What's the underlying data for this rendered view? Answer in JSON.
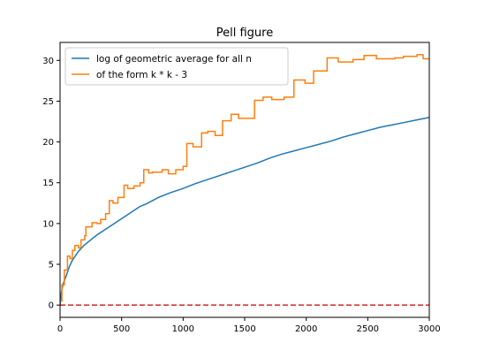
{
  "chart_data": {
    "type": "line",
    "title": "Pell figure",
    "xlabel": "",
    "ylabel": "",
    "xlim": [
      0,
      3000
    ],
    "ylim": [
      -1.5,
      32.2
    ],
    "x_ticks": [
      0,
      500,
      1000,
      1500,
      2000,
      2500,
      3000
    ],
    "y_ticks": [
      0,
      5,
      10,
      15,
      20,
      25,
      30
    ],
    "grid": false,
    "legend": "top-left",
    "series": [
      {
        "name": "log of geometric average for all n",
        "color": "#1f77b4",
        "style": "solid",
        "points": [
          [
            0,
            0
          ],
          [
            10,
            1.5
          ],
          [
            25,
            2.6
          ],
          [
            50,
            3.6
          ],
          [
            75,
            4.7
          ],
          [
            100,
            5.5
          ],
          [
            150,
            6.6
          ],
          [
            200,
            7.4
          ],
          [
            250,
            8.0
          ],
          [
            300,
            8.6
          ],
          [
            350,
            9.1
          ],
          [
            400,
            9.6
          ],
          [
            450,
            10.1
          ],
          [
            500,
            10.6
          ],
          [
            550,
            11.1
          ],
          [
            600,
            11.6
          ],
          [
            650,
            12.1
          ],
          [
            700,
            12.4
          ],
          [
            800,
            13.2
          ],
          [
            900,
            13.8
          ],
          [
            1000,
            14.3
          ],
          [
            1100,
            14.9
          ],
          [
            1200,
            15.4
          ],
          [
            1300,
            15.9
          ],
          [
            1400,
            16.4
          ],
          [
            1500,
            16.9
          ],
          [
            1600,
            17.4
          ],
          [
            1700,
            18.0
          ],
          [
            1800,
            18.5
          ],
          [
            1900,
            18.9
          ],
          [
            2000,
            19.3
          ],
          [
            2100,
            19.7
          ],
          [
            2200,
            20.1
          ],
          [
            2300,
            20.6
          ],
          [
            2400,
            21.0
          ],
          [
            2500,
            21.4
          ],
          [
            2600,
            21.8
          ],
          [
            2700,
            22.1
          ],
          [
            2800,
            22.4
          ],
          [
            2900,
            22.7
          ],
          [
            3000,
            23.0
          ]
        ]
      },
      {
        "name": "of the form k * k - 3",
        "color": "#ff7f0e",
        "style": "steps",
        "points": [
          [
            0,
            0.5
          ],
          [
            15,
            2.5
          ],
          [
            35,
            4.3
          ],
          [
            60,
            6.0
          ],
          [
            80,
            5.7
          ],
          [
            100,
            6.7
          ],
          [
            120,
            7.3
          ],
          [
            150,
            7.0
          ],
          [
            170,
            8.0
          ],
          [
            200,
            8.5
          ],
          [
            210,
            9.6
          ],
          [
            260,
            10.1
          ],
          [
            300,
            10.0
          ],
          [
            330,
            10.5
          ],
          [
            370,
            11.2
          ],
          [
            400,
            12.8
          ],
          [
            430,
            12.5
          ],
          [
            470,
            13.2
          ],
          [
            520,
            14.7
          ],
          [
            550,
            14.3
          ],
          [
            600,
            14.6
          ],
          [
            650,
            15.0
          ],
          [
            680,
            16.6
          ],
          [
            720,
            16.2
          ],
          [
            750,
            16.3
          ],
          [
            830,
            16.6
          ],
          [
            880,
            16.1
          ],
          [
            940,
            16.6
          ],
          [
            1000,
            17.0
          ],
          [
            1030,
            19.8
          ],
          [
            1080,
            19.4
          ],
          [
            1150,
            21.1
          ],
          [
            1200,
            21.3
          ],
          [
            1260,
            20.8
          ],
          [
            1320,
            22.6
          ],
          [
            1390,
            23.4
          ],
          [
            1450,
            22.9
          ],
          [
            1580,
            25.1
          ],
          [
            1650,
            25.5
          ],
          [
            1720,
            25.2
          ],
          [
            1820,
            25.5
          ],
          [
            1900,
            27.6
          ],
          [
            1990,
            27.2
          ],
          [
            2060,
            28.7
          ],
          [
            2170,
            30.3
          ],
          [
            2260,
            29.8
          ],
          [
            2380,
            30.1
          ],
          [
            2470,
            30.6
          ],
          [
            2570,
            30.2
          ],
          [
            2720,
            30.3
          ],
          [
            2790,
            30.5
          ],
          [
            2900,
            30.7
          ],
          [
            2950,
            30.2
          ],
          [
            3000,
            30.2
          ]
        ]
      },
      {
        "name": "",
        "color": "#d62728",
        "style": "dashed",
        "points": [
          [
            0,
            0
          ],
          [
            3000,
            0
          ]
        ]
      }
    ]
  }
}
